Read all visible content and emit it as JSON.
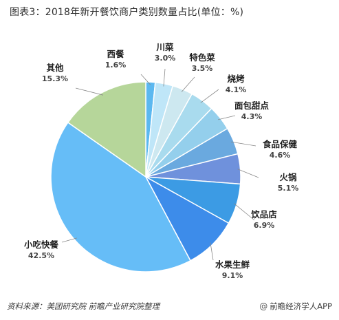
{
  "title": "图表3：2018年新开餐饮商户类别数量占比(单位：%)",
  "footer": {
    "source": "资料来源：美团研究院 前瞻产业研究院整理",
    "brand": "前瞻经济学人APP",
    "brand_icon": "at-icon"
  },
  "chart_data": {
    "type": "pie",
    "title": "图表3：2018年新开餐饮商户类别数量占比(单位：%)",
    "unit": "%",
    "slices": [
      {
        "label": "西餐",
        "value": 1.6,
        "value_text": "1.6%",
        "color": "#5bb8f0"
      },
      {
        "label": "川菜",
        "value": 3.0,
        "value_text": "3.0%",
        "color": "#bfe6f8"
      },
      {
        "label": "特色菜",
        "value": 3.5,
        "value_text": "3.5%",
        "color": "#cde8f0"
      },
      {
        "label": "烧烤",
        "value": 4.1,
        "value_text": "4.1%",
        "color": "#a9dbee"
      },
      {
        "label": "面包甜点",
        "value": 4.3,
        "value_text": "4.3%",
        "color": "#94cfec"
      },
      {
        "label": "食品保健",
        "value": 4.6,
        "value_text": "4.6%",
        "color": "#6aa9df"
      },
      {
        "label": "火锅",
        "value": 5.1,
        "value_text": "5.1%",
        "color": "#6f91dc"
      },
      {
        "label": "饮品店",
        "value": 6.9,
        "value_text": "6.9%",
        "color": "#3c9be4"
      },
      {
        "label": "水果生鲜",
        "value": 9.1,
        "value_text": "9.1%",
        "color": "#3d8cea"
      },
      {
        "label": "小吃快餐",
        "value": 42.5,
        "value_text": "42.5%",
        "color": "#66bdf7"
      },
      {
        "label": "其他",
        "value": 15.3,
        "value_text": "15.3%",
        "color": "#b6d69a"
      }
    ]
  }
}
